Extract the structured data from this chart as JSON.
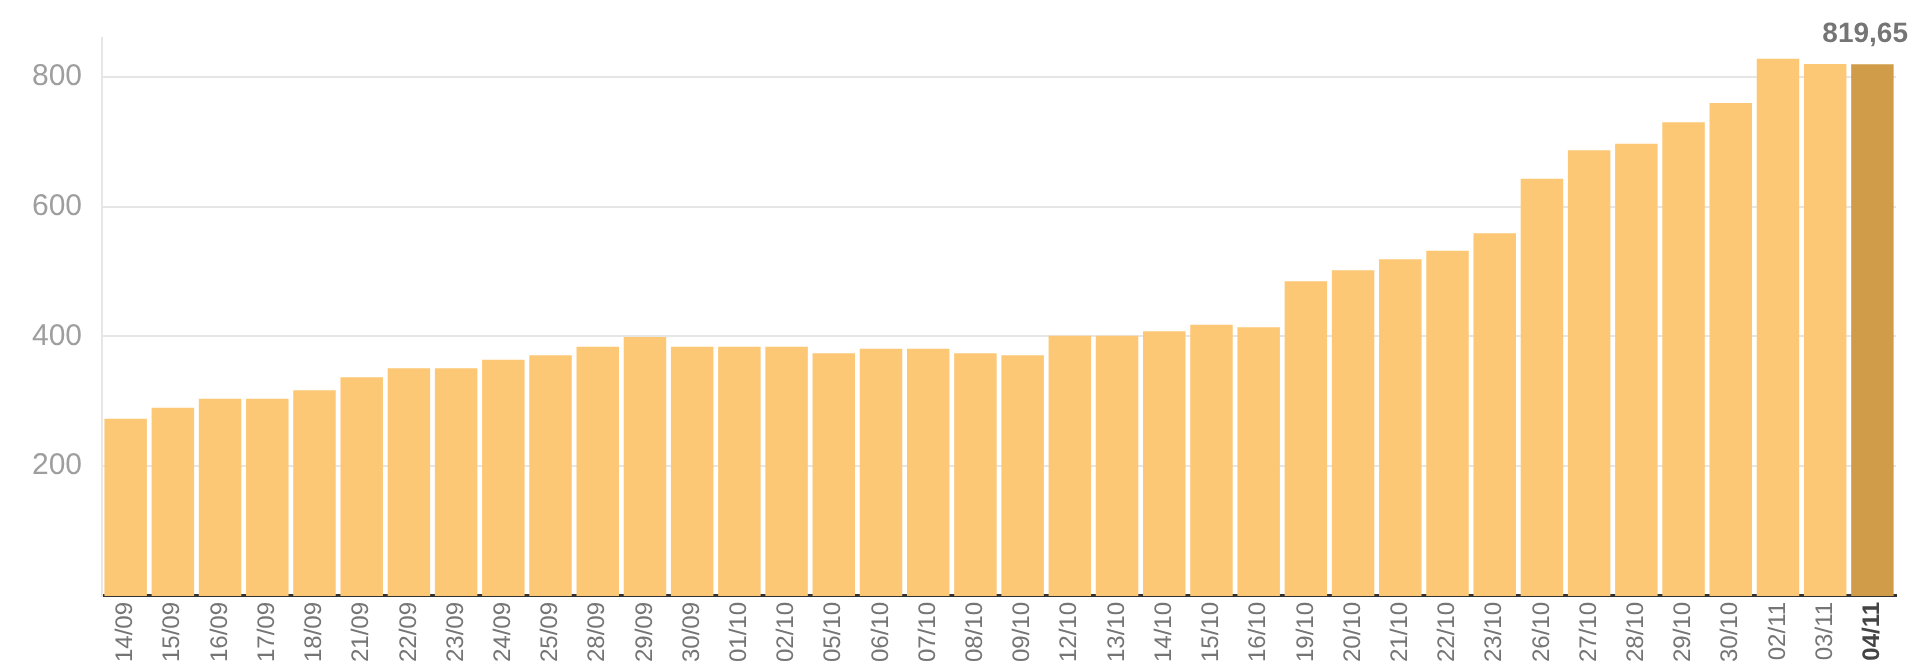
{
  "chart_data": {
    "type": "bar",
    "categories": [
      "14/09",
      "15/09",
      "16/09",
      "17/09",
      "18/09",
      "21/09",
      "22/09",
      "23/09",
      "24/09",
      "25/09",
      "28/09",
      "29/09",
      "30/09",
      "01/10",
      "02/10",
      "05/10",
      "06/10",
      "07/10",
      "08/10",
      "09/10",
      "12/10",
      "13/10",
      "14/10",
      "15/10",
      "16/10",
      "19/10",
      "20/10",
      "21/10",
      "22/10",
      "23/10",
      "26/10",
      "27/10",
      "28/10",
      "29/10",
      "30/10",
      "02/11",
      "03/11",
      "04/11"
    ],
    "values": [
      273,
      290,
      304,
      304,
      317,
      337,
      351,
      351,
      364,
      371,
      384,
      399,
      384,
      384,
      384,
      374,
      381,
      381,
      374,
      371,
      401,
      401,
      408,
      418,
      414,
      485,
      502,
      519,
      532,
      559,
      643,
      687,
      697,
      730,
      760,
      828,
      820,
      819.65
    ],
    "colors": [
      "#fdc875",
      "#fdc875",
      "#fdc875",
      "#fdc875",
      "#fdc875",
      "#fdc875",
      "#fdc875",
      "#fdc875",
      "#fdc875",
      "#fdc875",
      "#fdc875",
      "#fdc875",
      "#fdc875",
      "#fdc875",
      "#fdc875",
      "#fdc875",
      "#fdc875",
      "#fdc875",
      "#fdc875",
      "#fdc875",
      "#fdc875",
      "#fdc875",
      "#fdc875",
      "#fdc875",
      "#fdc875",
      "#fdc875",
      "#fdc875",
      "#fdc875",
      "#fdc875",
      "#fdc875",
      "#fdc875",
      "#fdc875",
      "#fdc875",
      "#fdc875",
      "#fdc875",
      "#fdc875",
      "#fdc875",
      "#d09c4a"
    ],
    "value_labels": [
      null,
      null,
      null,
      null,
      null,
      null,
      null,
      null,
      null,
      null,
      null,
      null,
      null,
      null,
      null,
      null,
      null,
      null,
      null,
      null,
      null,
      null,
      null,
      null,
      null,
      null,
      null,
      null,
      null,
      null,
      null,
      null,
      null,
      null,
      null,
      null,
      null,
      "819,65"
    ],
    "ylim": [
      0,
      860
    ],
    "yticks": [
      200,
      400,
      600,
      800
    ],
    "grid": "y",
    "legend": false
  }
}
